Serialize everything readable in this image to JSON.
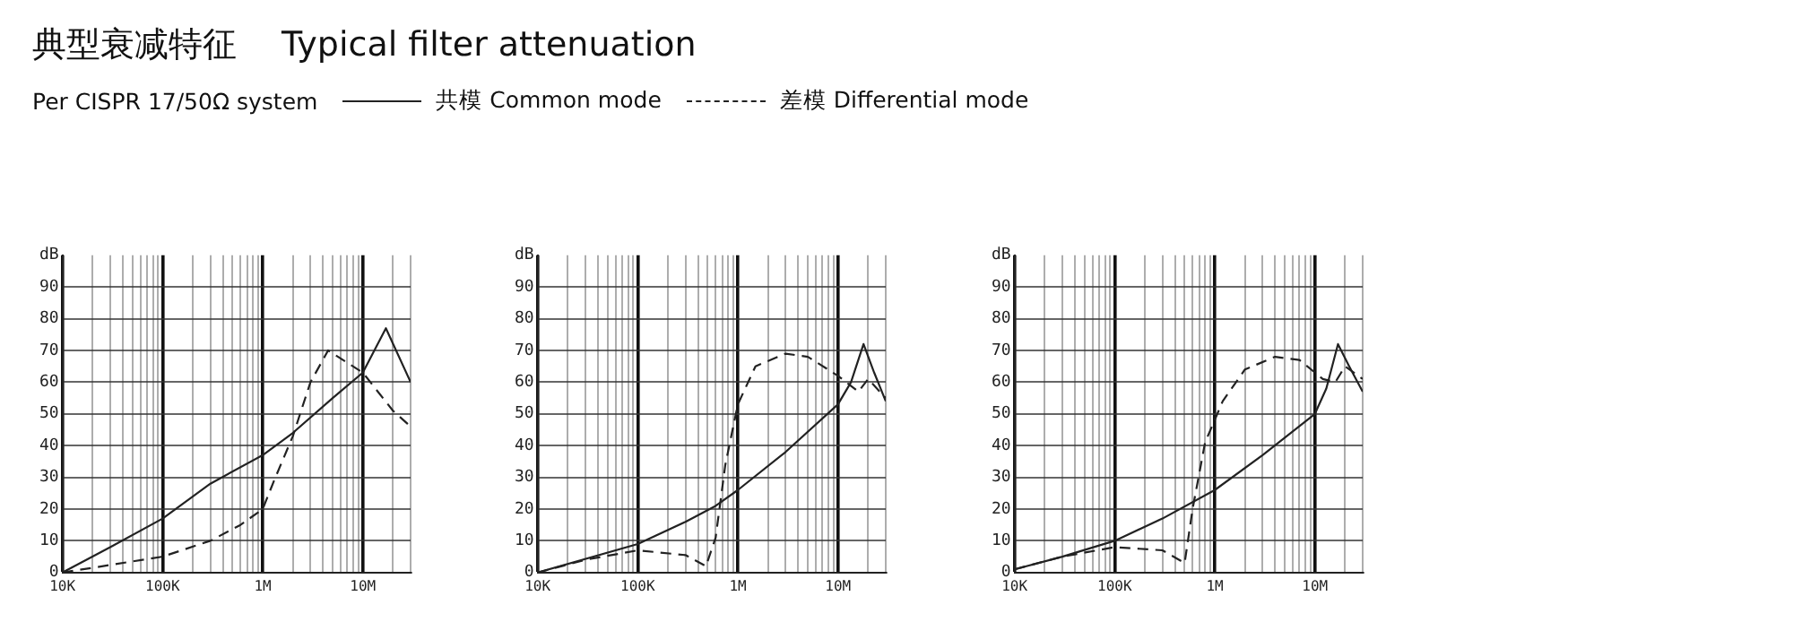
{
  "chart_data": [
    {
      "type": "line",
      "title": "典型衰减特征　 Typical filter attenuation",
      "subtitle": "Per CISPR 17/50Ω system",
      "legend": "top",
      "grid": true,
      "log": "x",
      "marker": "none",
      "xlim": [
        10000,
        30000000
      ],
      "ylim": [
        0,
        100
      ],
      "xticks": [
        {
          "value": 10000,
          "label": "10K"
        },
        {
          "value": 20000,
          "label": null
        },
        {
          "value": 30000,
          "label": null
        },
        {
          "value": 40000,
          "label": null
        },
        {
          "value": 50000,
          "label": null
        },
        {
          "value": 60000,
          "label": null
        },
        {
          "value": 70000,
          "label": null
        },
        {
          "value": 80000,
          "label": null
        },
        {
          "value": 90000,
          "label": null
        },
        {
          "value": 100000,
          "label": "100K"
        },
        {
          "value": 200000,
          "label": null
        },
        {
          "value": 300000,
          "label": null
        },
        {
          "value": 400000,
          "label": null
        },
        {
          "value": 500000,
          "label": null
        },
        {
          "value": 600000,
          "label": null
        },
        {
          "value": 700000,
          "label": null
        },
        {
          "value": 800000,
          "label": null
        },
        {
          "value": 900000,
          "label": null
        },
        {
          "value": 1000000,
          "label": "1M"
        },
        {
          "value": 2000000,
          "label": null
        },
        {
          "value": 3000000,
          "label": null
        },
        {
          "value": 4000000,
          "label": null
        },
        {
          "value": 5000000,
          "label": null
        },
        {
          "value": 6000000,
          "label": null
        },
        {
          "value": 7000000,
          "label": null
        },
        {
          "value": 8000000,
          "label": null
        },
        {
          "value": 9000000,
          "label": null
        },
        {
          "value": 10000000,
          "label": "10M"
        },
        {
          "value": 20000000,
          "label": null
        },
        {
          "value": 30000000,
          "label": null
        }
      ],
      "yticks": [
        0,
        10,
        20,
        30,
        40,
        50,
        60,
        70,
        80,
        90
      ],
      "ylabel": "dB",
      "series": [
        {
          "name": "共模  Common mode",
          "color": "#222222",
          "line_style": "solid",
          "x": [
            10000,
            30000,
            100000,
            300000,
            1000000,
            2000000,
            5000000,
            10000000,
            17000000,
            30000000
          ],
          "values": [
            0,
            8,
            17,
            28,
            37,
            44,
            55,
            63,
            77,
            60
          ]
        },
        {
          "name": "差模  Differential mode",
          "color": "#222222",
          "line_style": "dashed",
          "x": [
            10000,
            100000,
            300000,
            600000,
            1000000,
            1300000,
            2000000,
            3000000,
            4500000,
            10000000,
            20000000,
            30000000
          ],
          "values": [
            0,
            5,
            10,
            15,
            20,
            29,
            43,
            60,
            70,
            63,
            51,
            46
          ]
        }
      ]
    },
    {
      "type": "line",
      "grid": true,
      "log": "x",
      "marker": "none",
      "xlim": [
        10000,
        30000000
      ],
      "ylim": [
        0,
        100
      ],
      "xticks": [
        {
          "value": 10000,
          "label": "10K"
        },
        {
          "value": 20000,
          "label": null
        },
        {
          "value": 30000,
          "label": null
        },
        {
          "value": 40000,
          "label": null
        },
        {
          "value": 50000,
          "label": null
        },
        {
          "value": 60000,
          "label": null
        },
        {
          "value": 70000,
          "label": null
        },
        {
          "value": 80000,
          "label": null
        },
        {
          "value": 90000,
          "label": null
        },
        {
          "value": 100000,
          "label": "100K"
        },
        {
          "value": 200000,
          "label": null
        },
        {
          "value": 300000,
          "label": null
        },
        {
          "value": 400000,
          "label": null
        },
        {
          "value": 500000,
          "label": null
        },
        {
          "value": 600000,
          "label": null
        },
        {
          "value": 700000,
          "label": null
        },
        {
          "value": 800000,
          "label": null
        },
        {
          "value": 900000,
          "label": null
        },
        {
          "value": 1000000,
          "label": "1M"
        },
        {
          "value": 2000000,
          "label": null
        },
        {
          "value": 3000000,
          "label": null
        },
        {
          "value": 4000000,
          "label": null
        },
        {
          "value": 5000000,
          "label": null
        },
        {
          "value": 6000000,
          "label": null
        },
        {
          "value": 7000000,
          "label": null
        },
        {
          "value": 8000000,
          "label": null
        },
        {
          "value": 9000000,
          "label": null
        },
        {
          "value": 10000000,
          "label": "10M"
        },
        {
          "value": 20000000,
          "label": null
        },
        {
          "value": 30000000,
          "label": null
        }
      ],
      "yticks": [
        0,
        10,
        20,
        30,
        40,
        50,
        60,
        70,
        80,
        90
      ],
      "ylabel": "dB",
      "series": [
        {
          "color": "#222222",
          "line_style": "solid",
          "x": [
            10000,
            100000,
            300000,
            600000,
            1000000,
            3000000,
            10000000,
            13500000,
            18000000,
            23000000,
            30000000
          ],
          "values": [
            0,
            9,
            16,
            21,
            26,
            38,
            53,
            60,
            72,
            63,
            54
          ]
        },
        {
          "color": "#222222",
          "line_style": "dashed",
          "x": [
            10000,
            30000,
            100000,
            300000,
            480000,
            600000,
            750000,
            1000000,
            1500000,
            3000000,
            5000000,
            10000000,
            16000000,
            20000000,
            30000000
          ],
          "values": [
            0,
            4,
            7,
            5.5,
            2,
            11,
            34,
            53,
            65,
            69,
            68,
            62,
            57,
            61,
            55
          ]
        }
      ]
    },
    {
      "type": "line",
      "grid": true,
      "log": "x",
      "marker": "none",
      "xlim": [
        10000,
        30000000
      ],
      "ylim": [
        0,
        100
      ],
      "xticks": [
        {
          "value": 10000,
          "label": "10K"
        },
        {
          "value": 20000,
          "label": null
        },
        {
          "value": 30000,
          "label": null
        },
        {
          "value": 40000,
          "label": null
        },
        {
          "value": 50000,
          "label": null
        },
        {
          "value": 60000,
          "label": null
        },
        {
          "value": 70000,
          "label": null
        },
        {
          "value": 80000,
          "label": null
        },
        {
          "value": 90000,
          "label": null
        },
        {
          "value": 100000,
          "label": "100K"
        },
        {
          "value": 200000,
          "label": null
        },
        {
          "value": 300000,
          "label": null
        },
        {
          "value": 400000,
          "label": null
        },
        {
          "value": 500000,
          "label": null
        },
        {
          "value": 600000,
          "label": null
        },
        {
          "value": 700000,
          "label": null
        },
        {
          "value": 800000,
          "label": null
        },
        {
          "value": 900000,
          "label": null
        },
        {
          "value": 1000000,
          "label": "1M"
        },
        {
          "value": 2000000,
          "label": null
        },
        {
          "value": 3000000,
          "label": null
        },
        {
          "value": 4000000,
          "label": null
        },
        {
          "value": 5000000,
          "label": null
        },
        {
          "value": 6000000,
          "label": null
        },
        {
          "value": 7000000,
          "label": null
        },
        {
          "value": 8000000,
          "label": null
        },
        {
          "value": 9000000,
          "label": null
        },
        {
          "value": 10000000,
          "label": "10M"
        },
        {
          "value": 20000000,
          "label": null
        },
        {
          "value": 30000000,
          "label": null
        }
      ],
      "yticks": [
        0,
        10,
        20,
        30,
        40,
        50,
        60,
        70,
        80,
        90
      ],
      "ylabel": "dB",
      "series": [
        {
          "color": "#222222",
          "line_style": "solid",
          "x": [
            10000,
            30000,
            100000,
            300000,
            1000000,
            3000000,
            10000000,
            13000000,
            17000000,
            22000000,
            30000000
          ],
          "values": [
            1,
            5,
            10,
            17,
            26,
            37,
            50,
            58,
            72,
            65,
            57
          ]
        },
        {
          "color": "#222222",
          "line_style": "dashed",
          "x": [
            10000,
            30000,
            100000,
            300000,
            500000,
            600000,
            800000,
            1200000,
            2000000,
            4000000,
            7000000,
            12000000,
            16000000,
            20000000,
            30000000
          ],
          "values": [
            1,
            5,
            8,
            7,
            3,
            20,
            41,
            54,
            64,
            68,
            67,
            61,
            60,
            65,
            61
          ]
        }
      ]
    }
  ]
}
